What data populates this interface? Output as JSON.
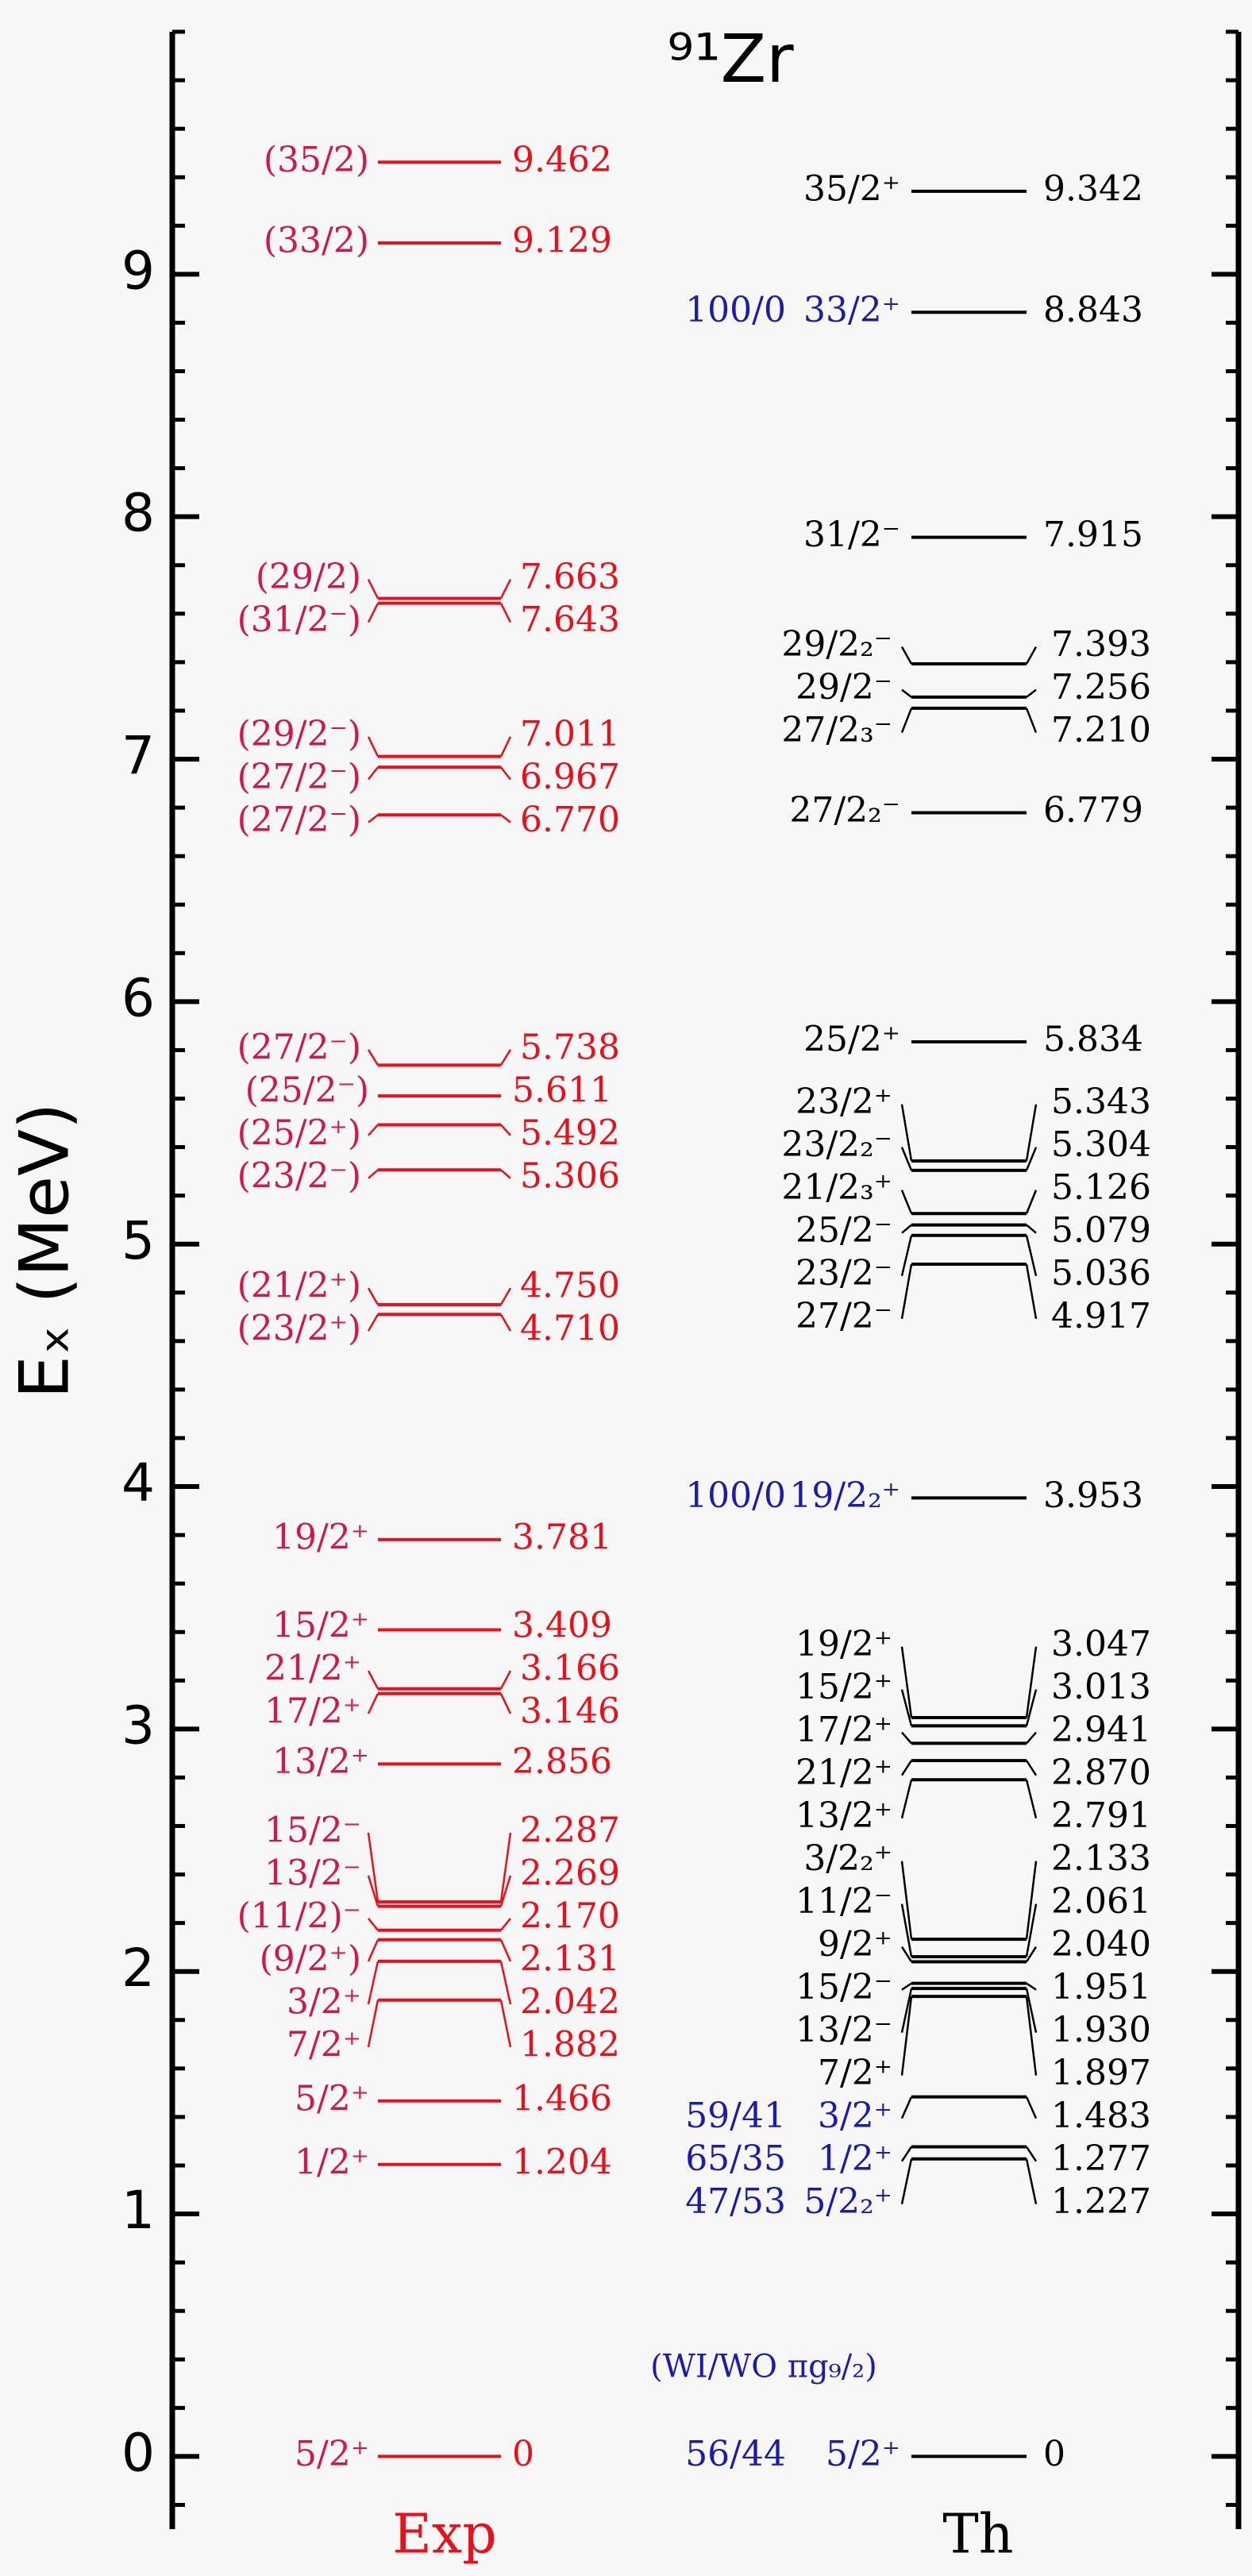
{
  "chart_data": {
    "type": "level-scheme",
    "title": "⁹¹Zr",
    "y_label": "Eₓ (MeV)",
    "ylim": [
      -0.3,
      10
    ],
    "yticks": [
      0,
      1,
      2,
      3,
      4,
      5,
      6,
      7,
      8,
      9
    ],
    "minor_ticks_per_major": 5,
    "note": "(WI/WO πg₉/₂)",
    "note_color": "#1c1ca8",
    "columns": [
      {
        "name": "Exp",
        "color": "#e8101a",
        "spin_color": "#d0184a",
        "energy_color": "#e8101a",
        "levels": [
          {
            "energy": 0,
            "energy_label": "0",
            "spin": "5/2⁺"
          },
          {
            "energy": 1.204,
            "energy_label": "1.204",
            "spin": "1/2⁺"
          },
          {
            "energy": 1.466,
            "energy_label": "1.466",
            "spin": "5/2⁺"
          },
          {
            "energy": 1.882,
            "energy_label": "1.882",
            "spin": "7/2⁺"
          },
          {
            "energy": 2.042,
            "energy_label": "2.042",
            "spin": "3/2⁺"
          },
          {
            "energy": 2.131,
            "energy_label": "2.131",
            "spin": "(9/2⁺)"
          },
          {
            "energy": 2.17,
            "energy_label": "2.170",
            "spin": "(11/2)⁻"
          },
          {
            "energy": 2.269,
            "energy_label": "2.269",
            "spin": "13/2⁻"
          },
          {
            "energy": 2.287,
            "energy_label": "2.287",
            "spin": "15/2⁻"
          },
          {
            "energy": 2.856,
            "energy_label": "2.856",
            "spin": "13/2⁺"
          },
          {
            "energy": 3.146,
            "energy_label": "3.146",
            "spin": "17/2⁺"
          },
          {
            "energy": 3.166,
            "energy_label": "3.166",
            "spin": "21/2⁺"
          },
          {
            "energy": 3.409,
            "energy_label": "3.409",
            "spin": "15/2⁺"
          },
          {
            "energy": 3.781,
            "energy_label": "3.781",
            "spin": "19/2⁺"
          },
          {
            "energy": 4.71,
            "energy_label": "4.710",
            "spin": "(23/2⁺)"
          },
          {
            "energy": 4.75,
            "energy_label": "4.750",
            "spin": "(21/2⁺)"
          },
          {
            "energy": 5.306,
            "energy_label": "5.306",
            "spin": "(23/2⁻)"
          },
          {
            "energy": 5.492,
            "energy_label": "5.492",
            "spin": "(25/2⁺)"
          },
          {
            "energy": 5.611,
            "energy_label": "5.611",
            "spin": "(25/2⁻)"
          },
          {
            "energy": 5.738,
            "energy_label": "5.738",
            "spin": "(27/2⁻)"
          },
          {
            "energy": 6.77,
            "energy_label": "6.770",
            "spin": "(27/2⁻)"
          },
          {
            "energy": 6.967,
            "energy_label": "6.967",
            "spin": "(27/2⁻)"
          },
          {
            "energy": 7.011,
            "energy_label": "7.011",
            "spin": "(29/2⁻)"
          },
          {
            "energy": 7.643,
            "energy_label": "7.643",
            "spin": "(31/2⁻)"
          },
          {
            "energy": 7.663,
            "energy_label": "7.663",
            "spin": "(29/2)"
          },
          {
            "energy": 9.129,
            "energy_label": "9.129",
            "spin": "(33/2)"
          },
          {
            "energy": 9.462,
            "energy_label": "9.462",
            "spin": "(35/2)"
          }
        ]
      },
      {
        "name": "Th",
        "color": "#000000",
        "spin_color": "#000000",
        "energy_color": "#000000",
        "ratio_color": "#1c1ca8",
        "levels": [
          {
            "energy": 0,
            "energy_label": "0",
            "spin": "5/2⁺",
            "ratio": "56/44"
          },
          {
            "energy": 1.227,
            "energy_label": "1.227",
            "spin": "5/2₂⁺",
            "ratio": "47/53"
          },
          {
            "energy": 1.277,
            "energy_label": "1.277",
            "spin": "1/2⁺",
            "ratio": "65/35"
          },
          {
            "energy": 1.483,
            "energy_label": "1.483",
            "spin": "3/2⁺",
            "ratio": "59/41"
          },
          {
            "energy": 1.897,
            "energy_label": "1.897",
            "spin": "7/2⁺"
          },
          {
            "energy": 1.93,
            "energy_label": "1.930",
            "spin": "13/2⁻"
          },
          {
            "energy": 1.951,
            "energy_label": "1.951",
            "spin": "15/2⁻"
          },
          {
            "energy": 2.04,
            "energy_label": "2.040",
            "spin": "9/2⁺"
          },
          {
            "energy": 2.061,
            "energy_label": "2.061",
            "spin": "11/2⁻"
          },
          {
            "energy": 2.133,
            "energy_label": "2.133",
            "spin": "3/2₂⁺"
          },
          {
            "energy": 2.791,
            "energy_label": "2.791",
            "spin": "13/2⁺"
          },
          {
            "energy": 2.87,
            "energy_label": "2.870",
            "spin": "21/2⁺"
          },
          {
            "energy": 2.941,
            "energy_label": "2.941",
            "spin": "17/2⁺"
          },
          {
            "energy": 3.013,
            "energy_label": "3.013",
            "spin": "15/2⁺"
          },
          {
            "energy": 3.047,
            "energy_label": "3.047",
            "spin": "19/2⁺"
          },
          {
            "energy": 3.953,
            "energy_label": "3.953",
            "spin": "19/2₂⁺",
            "ratio": "100/0"
          },
          {
            "energy": 4.917,
            "energy_label": "4.917",
            "spin": "27/2⁻"
          },
          {
            "energy": 5.036,
            "energy_label": "5.036",
            "spin": "23/2⁻"
          },
          {
            "energy": 5.079,
            "energy_label": "5.079",
            "spin": "25/2⁻"
          },
          {
            "energy": 5.126,
            "energy_label": "5.126",
            "spin": "21/2₃⁺"
          },
          {
            "energy": 5.304,
            "energy_label": "5.304",
            "spin": "23/2₂⁻"
          },
          {
            "energy": 5.343,
            "energy_label": "5.343",
            "spin": "23/2⁺"
          },
          {
            "energy": 5.834,
            "energy_label": "5.834",
            "spin": "25/2⁺"
          },
          {
            "energy": 6.779,
            "energy_label": "6.779",
            "spin": "27/2₂⁻"
          },
          {
            "energy": 7.21,
            "energy_label": "7.210",
            "spin": "27/2₃⁻"
          },
          {
            "energy": 7.256,
            "energy_label": "7.256",
            "spin": "29/2⁻"
          },
          {
            "energy": 7.393,
            "energy_label": "7.393",
            "spin": "29/2₂⁻"
          },
          {
            "energy": 7.915,
            "energy_label": "7.915",
            "spin": "31/2⁻"
          },
          {
            "energy": 8.843,
            "energy_label": "8.843",
            "spin": "33/2⁺",
            "ratio": "100/0"
          },
          {
            "energy": 9.342,
            "energy_label": "9.342",
            "spin": "35/2⁺"
          }
        ]
      }
    ]
  }
}
